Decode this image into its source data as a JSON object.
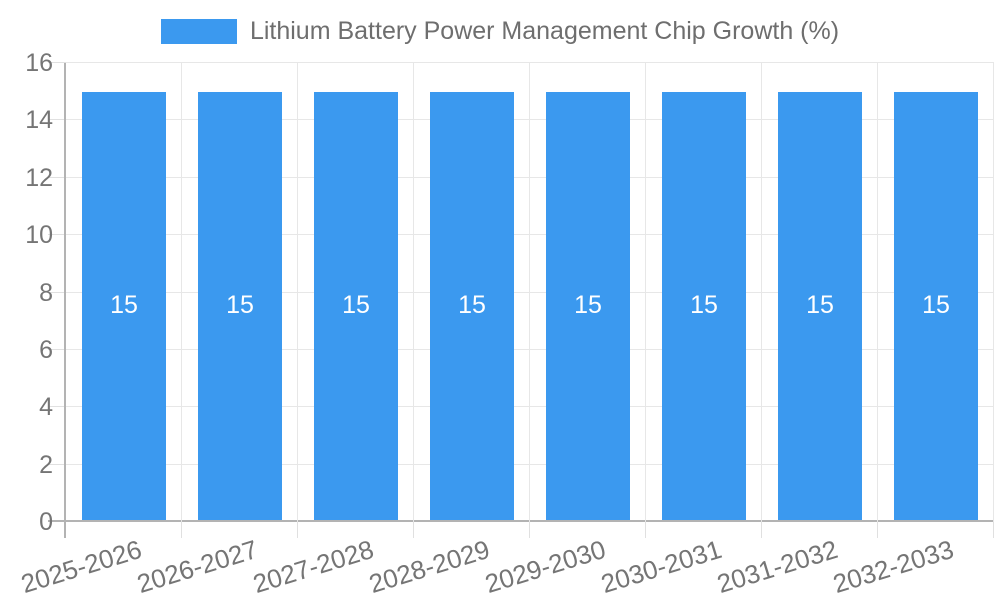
{
  "legend": {
    "label": "Lithium Battery Power Management Chip Growth (%)"
  },
  "colors": {
    "bar": "#3B99EF",
    "bar_label": "#FFFFFF",
    "grid": "#E7E7E7",
    "axis": "#B3B3B3",
    "tick": "#E0E0E0",
    "axis_text": "#757575",
    "legend_text": "#6E6E6E",
    "background": "#FFFFFF"
  },
  "chart_data": {
    "type": "bar",
    "title": "Lithium Battery Power Management Chip Growth (%)",
    "categories": [
      "2025-2026",
      "2026-2027",
      "2027-2028",
      "2028-2029",
      "2029-2030",
      "2030-2031",
      "2031-2032",
      "2032-2033"
    ],
    "series": [
      {
        "name": "Lithium Battery Power Management Chip Growth (%)",
        "color": "#3B99EF",
        "values": [
          15,
          15,
          15,
          15,
          15,
          15,
          15,
          15
        ]
      }
    ],
    "xlabel": "",
    "ylabel": "",
    "ylim": [
      0,
      16
    ],
    "yticks": [
      0,
      2,
      4,
      6,
      8,
      10,
      12,
      14,
      16
    ],
    "grid": true,
    "legend_position": "top",
    "bar_value_labels_visible": true,
    "x_label_rotation_deg": -17
  }
}
